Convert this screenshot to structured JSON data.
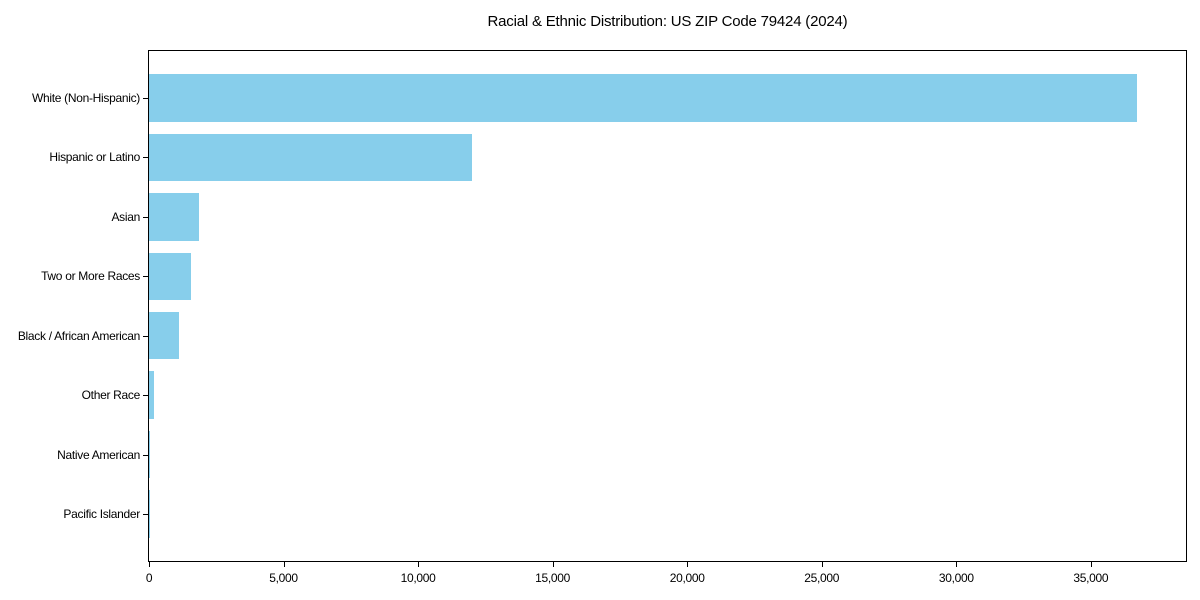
{
  "chart_data": {
    "type": "bar",
    "orientation": "horizontal",
    "title": "Racial & Ethnic Distribution: US ZIP Code 79424 (2024)",
    "categories": [
      "White (Non-Hispanic)",
      "Hispanic or Latino",
      "Asian",
      "Two or More Races",
      "Black / African American",
      "Other Race",
      "Native American",
      "Pacific Islander"
    ],
    "values": [
      36700,
      12000,
      1860,
      1570,
      1125,
      175,
      40,
      10
    ],
    "xlabel": "",
    "ylabel": "",
    "xlim": [
      0,
      38500
    ],
    "xticks": [
      0,
      5000,
      10000,
      15000,
      20000,
      25000,
      30000,
      35000
    ],
    "xtick_labels": [
      "0",
      "5,000",
      "10,000",
      "15,000",
      "20,000",
      "25,000",
      "30,000",
      "35,000"
    ],
    "grid": false,
    "legend": null,
    "bar_color": "#87CEEB",
    "spine_color": "#000000",
    "text_color": "#000000",
    "background_color": "#FFFFFF"
  }
}
